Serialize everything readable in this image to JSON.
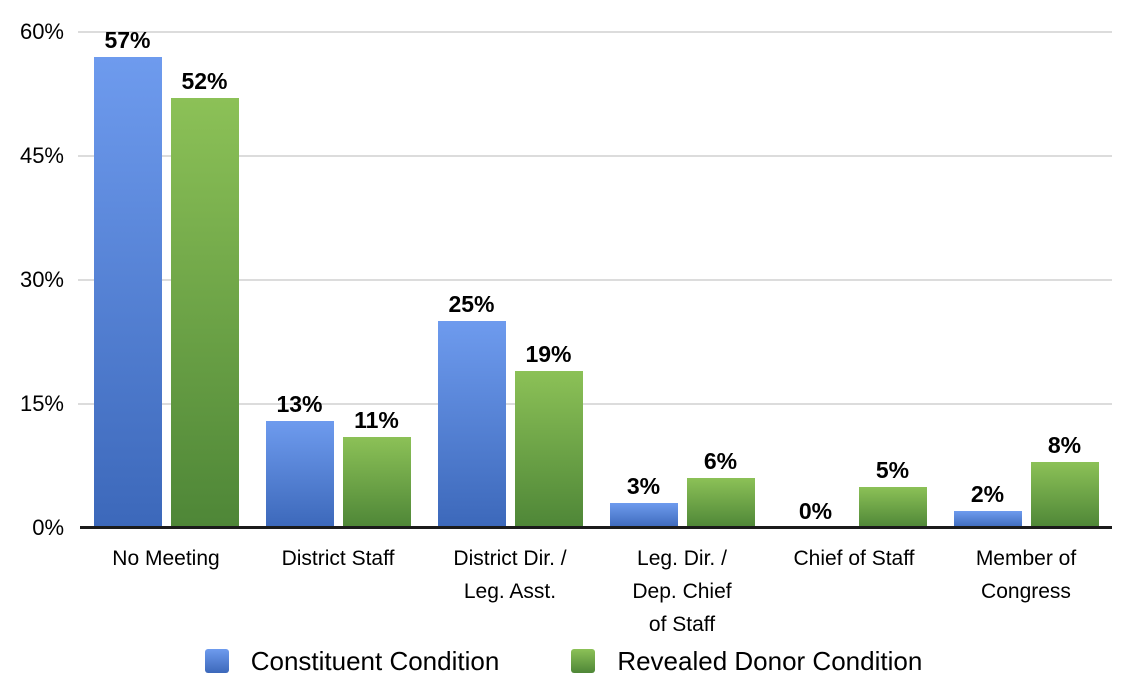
{
  "chart_data": {
    "type": "bar",
    "title": "",
    "categories": [
      "No Meeting",
      "District Staff",
      "District Dir. /\nLeg. Asst.",
      "Leg. Dir. /\nDep. Chief\nof Staff",
      "Chief of Staff",
      "Member of\nCongress"
    ],
    "series": [
      {
        "name": "Constituent Condition",
        "values": [
          57,
          13,
          25,
          3,
          0,
          2
        ],
        "color_top": "#6E9BEE",
        "color_bottom": "#3C68BA"
      },
      {
        "name": "Revealed Donor Condition",
        "values": [
          52,
          11,
          19,
          6,
          5,
          8
        ],
        "color_top": "#8CC157",
        "color_bottom": "#4E8637"
      }
    ],
    "value_suffix": "%",
    "value_labels_visible": true,
    "grid": true,
    "legend_position": "bottom",
    "y_axis": {
      "min": 0,
      "max": 60,
      "ticks": [
        {
          "label": "0%",
          "value": 0
        },
        {
          "label": "15%",
          "value": 15
        },
        {
          "label": "30%",
          "value": 30
        },
        {
          "label": "45%",
          "value": 45
        },
        {
          "label": "60%",
          "value": 60
        }
      ]
    }
  },
  "colors": {
    "background": "#ffffff",
    "gridline": "#dcdcdc",
    "axis": "#1b1b1b",
    "text": "#000000"
  }
}
